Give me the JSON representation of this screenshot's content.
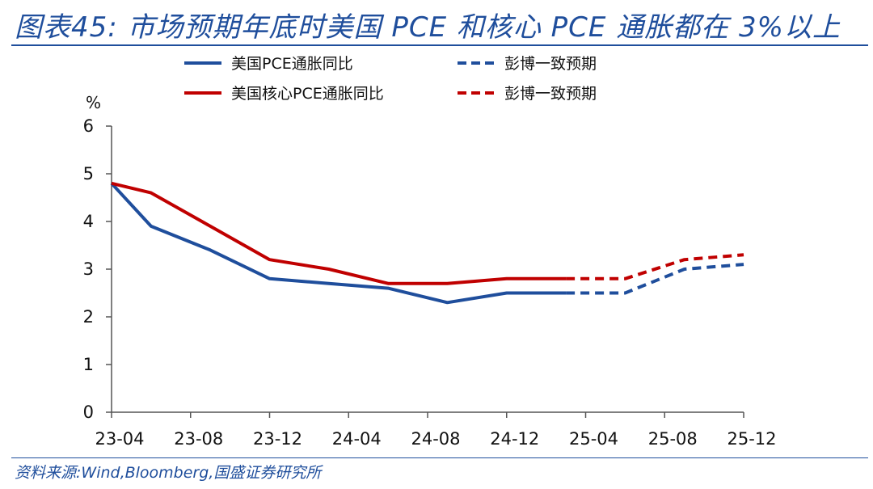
{
  "header": {
    "title": "图表45:  市场预期年底时美国 PCE 和核心 PCE 通胀都在 3%以上"
  },
  "source": "资料来源:Wind,Bloomberg,国盛证券研究所",
  "chart_data": {
    "type": "line",
    "unit": "%",
    "ylim": [
      0,
      6
    ],
    "yticks": [
      "0",
      "1",
      "2",
      "3",
      "4",
      "5",
      "6"
    ],
    "xticks": [
      "23-04",
      "23-08",
      "23-12",
      "24-04",
      "24-08",
      "24-12",
      "25-04",
      "25-08",
      "25-12"
    ],
    "x_start": "23-04",
    "x_end": "25-12",
    "grid": false,
    "legend_position": "top",
    "colors": {
      "pce": "#1f4e9c",
      "core": "#c00000"
    },
    "series": [
      {
        "name": "美国PCE通胀同比",
        "color": "#1f4e9c",
        "dash": false,
        "points": [
          {
            "x": "23-04",
            "y": 4.8
          },
          {
            "x": "23-06",
            "y": 3.9
          },
          {
            "x": "23-09",
            "y": 3.4
          },
          {
            "x": "23-12",
            "y": 2.8
          },
          {
            "x": "24-03",
            "y": 2.7
          },
          {
            "x": "24-06",
            "y": 2.6
          },
          {
            "x": "24-09",
            "y": 2.3
          },
          {
            "x": "24-12",
            "y": 2.5
          },
          {
            "x": "25-03",
            "y": 2.5
          }
        ]
      },
      {
        "name": "彭博一致预期",
        "color": "#1f4e9c",
        "dash": true,
        "points": [
          {
            "x": "25-03",
            "y": 2.5
          },
          {
            "x": "25-06",
            "y": 2.5
          },
          {
            "x": "25-09",
            "y": 3.0
          },
          {
            "x": "25-12",
            "y": 3.1
          }
        ]
      },
      {
        "name": "美国核心PCE通胀同比",
        "color": "#c00000",
        "dash": false,
        "points": [
          {
            "x": "23-04",
            "y": 4.8
          },
          {
            "x": "23-06",
            "y": 4.6
          },
          {
            "x": "23-09",
            "y": 3.9
          },
          {
            "x": "23-12",
            "y": 3.2
          },
          {
            "x": "24-03",
            "y": 3.0
          },
          {
            "x": "24-06",
            "y": 2.7
          },
          {
            "x": "24-09",
            "y": 2.7
          },
          {
            "x": "24-12",
            "y": 2.8
          },
          {
            "x": "25-03",
            "y": 2.8
          }
        ]
      },
      {
        "name": "彭博一致预期",
        "color": "#c00000",
        "dash": true,
        "points": [
          {
            "x": "25-03",
            "y": 2.8
          },
          {
            "x": "25-06",
            "y": 2.8
          },
          {
            "x": "25-09",
            "y": 3.2
          },
          {
            "x": "25-12",
            "y": 3.3
          }
        ]
      }
    ]
  }
}
